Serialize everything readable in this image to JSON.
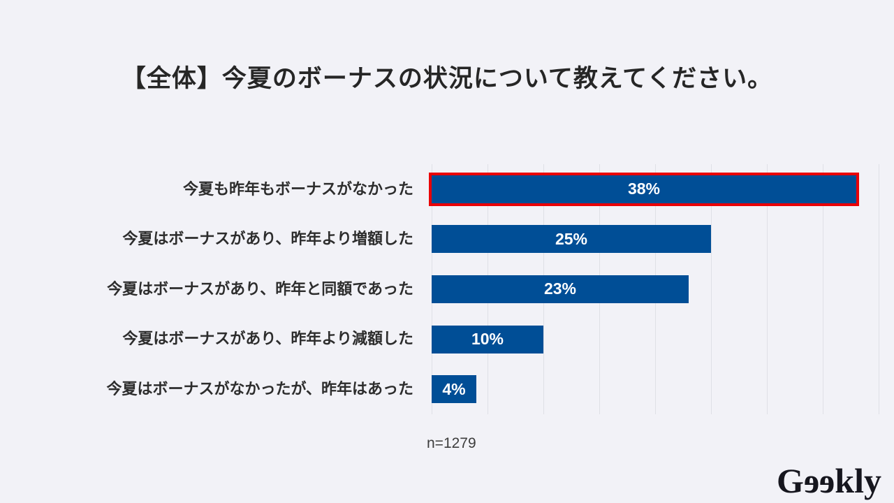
{
  "page": {
    "background": "#f2f2f7",
    "title": "【全体】今夏のボーナスの状況について教えてください。",
    "note": "n=1279",
    "logo": {
      "text": "Geekly",
      "parts": [
        "G",
        "e",
        "e",
        "kly"
      ],
      "mirrored": [
        false,
        true,
        true,
        false
      ]
    },
    "colors": {
      "bar": "#004e96",
      "highlight_border": "#e90207",
      "gridline": "#dfe0e6",
      "title_text": "#262626",
      "category_text": "#2d2d2d",
      "value_text": "#ffffff",
      "note_text": "#3d3d3d",
      "logo_text": "#16161e"
    }
  },
  "chart_data": {
    "type": "bar",
    "orientation": "horizontal",
    "title": "【全体】今夏のボーナスの状況について教えてください。",
    "categories": [
      "今夏も昨年もボーナスがなかった",
      "今夏はボーナスがあり、昨年より増額した",
      "今夏はボーナスがあり、昨年と同額であった",
      "今夏はボーナスがあり、昨年より減額した",
      "今夏はボーナスがなかったが、昨年はあった"
    ],
    "values": [
      38,
      25,
      23,
      10,
      4
    ],
    "value_labels": [
      "38%",
      "25%",
      "23%",
      "10%",
      "4%"
    ],
    "xlabel": "",
    "ylabel": "",
    "xlim": [
      0,
      40
    ],
    "gridline_interval": 5,
    "grid": true,
    "legend": false,
    "highlighted_index": 0,
    "note": "n=1279"
  }
}
